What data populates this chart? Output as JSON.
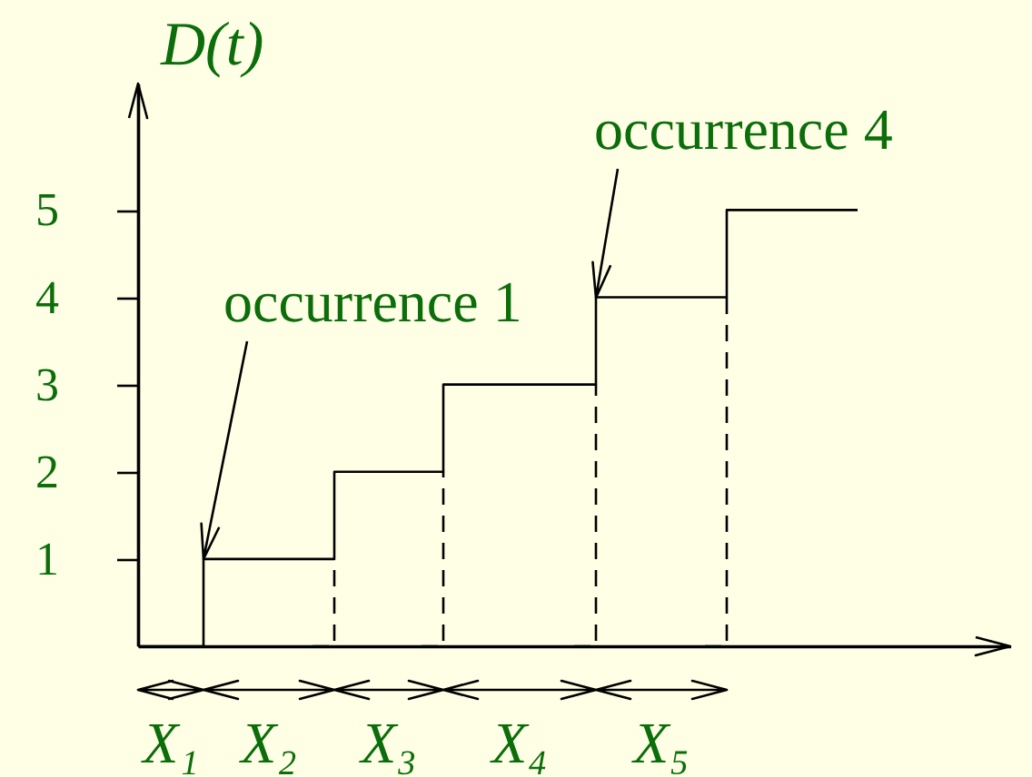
{
  "chart_data": {
    "type": "step",
    "ylabel": "D(t)",
    "categories": [
      null,
      null,
      null,
      null,
      null,
      null,
      null,
      null,
      null,
      null,
      null,
      null,
      null,
      null,
      null,
      null,
      null,
      null,
      null,
      null,
      null,
      null,
      null,
      null,
      null,
      null,
      null,
      null,
      null,
      null,
      null,
      null,
      null,
      null
    ],
    "series": [
      {
        "color": "#000000",
        "values": [
          0,
          0,
          0,
          1,
          1,
          1,
          1,
          1,
          1,
          2,
          2,
          2,
          2,
          2,
          3,
          3,
          3,
          3,
          3,
          3,
          3,
          4,
          4,
          4,
          4,
          4,
          4,
          5,
          5,
          5,
          5,
          5,
          5,
          5
        ]
      },
      {
        "line_style": "dashed",
        "color": "#000000",
        "values": [
          null,
          null,
          null,
          null,
          null,
          null,
          null,
          null,
          0,
          1,
          null,
          null,
          null,
          0,
          2,
          null,
          null,
          null,
          null,
          null,
          0,
          3,
          null,
          null,
          null,
          null,
          0,
          4,
          null,
          null,
          null,
          null,
          null,
          null
        ]
      }
    ],
    "ylim": [
      0,
      6.45
    ],
    "yticks": [
      1,
      2,
      3,
      4,
      5
    ],
    "tick_labels": "y",
    "annotations": [
      "occurrence 1",
      "occurrence 4",
      "X₁",
      "X₂",
      "X₃",
      "X₄",
      "X₅"
    ]
  }
}
